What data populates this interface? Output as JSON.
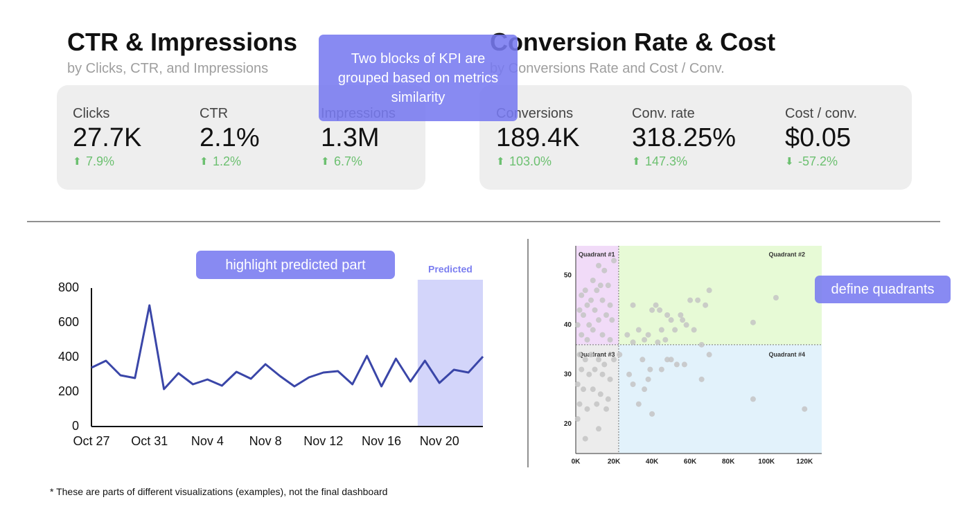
{
  "kpi_blocks": [
    {
      "title": "CTR & Impressions",
      "subtitle": "by Clicks, CTR, and Impressions",
      "items": [
        {
          "label": "Clicks",
          "value": "27.7K",
          "change": "7.9%",
          "trend": "up"
        },
        {
          "label": "CTR",
          "value": "2.1%",
          "change": "1.2%",
          "trend": "up"
        },
        {
          "label": "Impressions",
          "value": "1.3M",
          "change": "6.7%",
          "trend": "up"
        }
      ]
    },
    {
      "title": "Conversion Rate & Cost",
      "subtitle": "by Conversions Rate and Cost / Conv.",
      "items": [
        {
          "label": "Conversions",
          "value": "189.4K",
          "change": "103.0%",
          "trend": "up"
        },
        {
          "label": "Conv. rate",
          "value": "318.25%",
          "change": "147.3%",
          "trend": "up"
        },
        {
          "label": "Cost / conv.",
          "value": "$0.05",
          "change": "-57.2%",
          "trend": "down"
        }
      ]
    }
  ],
  "annotations": [
    "Two blocks of KPI are grouped based on metrics similarity",
    "highlight predicted part",
    "define quadrants"
  ],
  "footnote": "* These are parts of different visualizations (examples), not the final dashboard",
  "chart_data": [
    {
      "type": "line",
      "color": "#3a46a8",
      "highlight_label": "Predicted",
      "categories": [
        "Oct 27",
        null,
        null,
        null,
        "Oct 31",
        null,
        null,
        null,
        "Nov 4",
        null,
        null,
        null,
        "Nov 8",
        null,
        null,
        null,
        "Nov 12",
        null,
        null,
        null,
        "Nov 16",
        null,
        null,
        null,
        "Nov 20",
        null,
        null,
        null
      ],
      "values": [
        340,
        380,
        296,
        280,
        700,
        216,
        308,
        244,
        272,
        236,
        316,
        276,
        360,
        292,
        232,
        284,
        312,
        320,
        244,
        408,
        232,
        392,
        260,
        380,
        252,
        328,
        312,
        404
      ],
      "ylim": [
        0,
        800
      ],
      "yticks": [
        0,
        200,
        400,
        600,
        800
      ]
    },
    {
      "type": "scatter",
      "color": "#c4c4c4",
      "quadrant_labels": [
        "Quadrant #1",
        "Quadrant #2",
        "Quadrant #3",
        "Quadrant #4"
      ],
      "quadrant_colors": [
        "#f1dbf8",
        "#e7fad6",
        "#ececec",
        "#e2f2fb"
      ],
      "x_threshold": 22500,
      "y_threshold": 36,
      "x": [
        12000,
        15000,
        9000,
        13000,
        17000,
        5000,
        11000,
        3000,
        8000,
        14000,
        18000,
        6000,
        2000,
        10000,
        16000,
        4000,
        12000,
        7000,
        19000,
        1000,
        9000,
        14000,
        3000,
        20000,
        18000,
        6000,
        30000,
        40000,
        42000,
        44000,
        48000,
        50000,
        55000,
        60000,
        64000,
        70000,
        68000,
        58000,
        62000,
        45000,
        38000,
        33000,
        27000,
        30000,
        36000,
        43000,
        47000,
        52000,
        56000,
        66000,
        93000,
        105000,
        2000,
        5000,
        8000,
        12000,
        15000,
        3000,
        7000,
        10000,
        14000,
        18000,
        1000,
        4000,
        9000,
        13000,
        17000,
        2000,
        6000,
        11000,
        16000,
        1000,
        5000,
        12000,
        20000,
        28000,
        30000,
        33000,
        36000,
        40000,
        38000,
        39000,
        45000,
        48000,
        50000,
        53000,
        57000,
        66000,
        70000,
        93000,
        120000,
        23000,
        35000
      ],
      "values": [
        52,
        51,
        49,
        48,
        48,
        47,
        47,
        46,
        45,
        45,
        44,
        44,
        43,
        43,
        42,
        42,
        41,
        40,
        41,
        40,
        39,
        38,
        38,
        53,
        37,
        37,
        44,
        43,
        44,
        43,
        42,
        41,
        42,
        45,
        45,
        47,
        44,
        40,
        39,
        39,
        38,
        39,
        38,
        36.5,
        37,
        36.5,
        37,
        39,
        41,
        36,
        40.5,
        45.5,
        34,
        33,
        34,
        33,
        32,
        31,
        30,
        31,
        30,
        29,
        28,
        27,
        27,
        26,
        25,
        24,
        23,
        24,
        23,
        21,
        17,
        19,
        33,
        30,
        28,
        24,
        27,
        22,
        29,
        31,
        31,
        33,
        33,
        32,
        32,
        29,
        34,
        25,
        23,
        34,
        33
      ],
      "xlim": [
        0,
        129000
      ],
      "ylim": [
        14,
        56
      ],
      "xticks": [
        {
          "value": 0,
          "label": "0K"
        },
        {
          "value": 20000,
          "label": "20K"
        },
        {
          "value": 40000,
          "label": "40K"
        },
        {
          "value": 60000,
          "label": "60K"
        },
        {
          "value": 80000,
          "label": "80K"
        },
        {
          "value": 100000,
          "label": "100K"
        },
        {
          "value": 120000,
          "label": "120K"
        }
      ],
      "yticks": [
        20,
        30,
        40,
        50
      ]
    }
  ]
}
